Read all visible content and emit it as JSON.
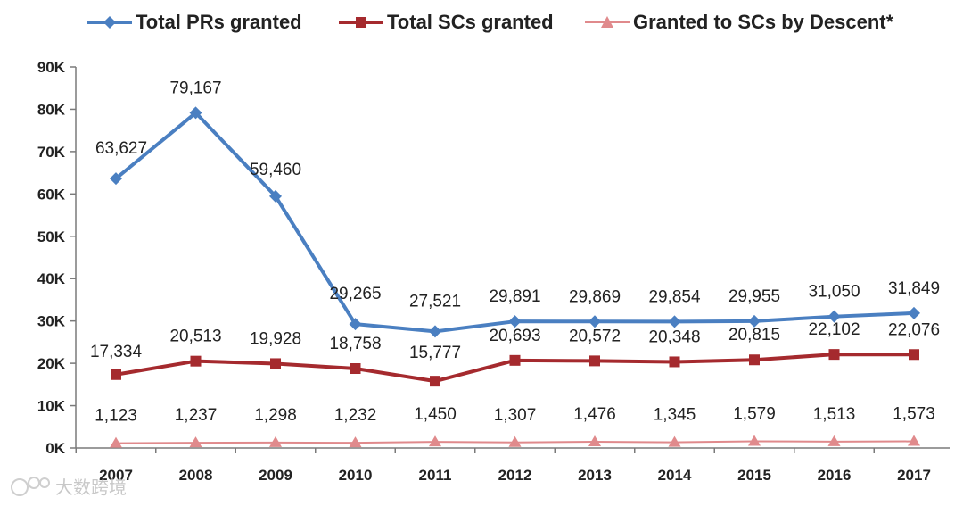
{
  "chart_data": {
    "type": "line",
    "title": "",
    "xlabel": "",
    "ylabel": "",
    "ylim": [
      0,
      90000
    ],
    "y_ticks": [
      "0K",
      "10K",
      "20K",
      "30K",
      "40K",
      "50K",
      "60K",
      "70K",
      "80K",
      "90K"
    ],
    "y_tick_values": [
      0,
      10000,
      20000,
      30000,
      40000,
      50000,
      60000,
      70000,
      80000,
      90000
    ],
    "grid": false,
    "legend_position": "top",
    "categories": [
      "2007",
      "2008",
      "2009",
      "2010",
      "2011",
      "2012",
      "2013",
      "2014",
      "2015",
      "2016",
      "2017"
    ],
    "series": [
      {
        "name": "Total PRs granted",
        "color": "#4a7fc1",
        "marker": "diamond",
        "values": [
          63627,
          79167,
          59460,
          29265,
          27521,
          29891,
          29869,
          29854,
          29955,
          31050,
          31849
        ],
        "labels": [
          "63,627",
          "79,167",
          "59,460",
          "29,265",
          "27,521",
          "29,891",
          "29,869",
          "29,854",
          "29,955",
          "31,050",
          "31,849"
        ]
      },
      {
        "name": "Total SCs granted",
        "color": "#a52a2e",
        "marker": "square",
        "values": [
          17334,
          20513,
          19928,
          18758,
          15777,
          20693,
          20572,
          20348,
          20815,
          22102,
          22076
        ],
        "labels": [
          "17,334",
          "20,513",
          "19,928",
          "18,758",
          "15,777",
          "20,693",
          "20,572",
          "20,348",
          "20,815",
          "22,102",
          "22,076"
        ]
      },
      {
        "name": "Granted to SCs by Descent*",
        "color": "#e08a8c",
        "marker": "triangle",
        "values": [
          1123,
          1237,
          1298,
          1232,
          1450,
          1307,
          1476,
          1345,
          1579,
          1513,
          1573
        ],
        "labels": [
          "1,123",
          "1,237",
          "1,298",
          "1,232",
          "1,450",
          "1,307",
          "1,476",
          "1,345",
          "1,579",
          "1,513",
          "1,573"
        ]
      }
    ]
  },
  "watermark": {
    "icon": "logo-icon",
    "text": "大数跨境"
  }
}
